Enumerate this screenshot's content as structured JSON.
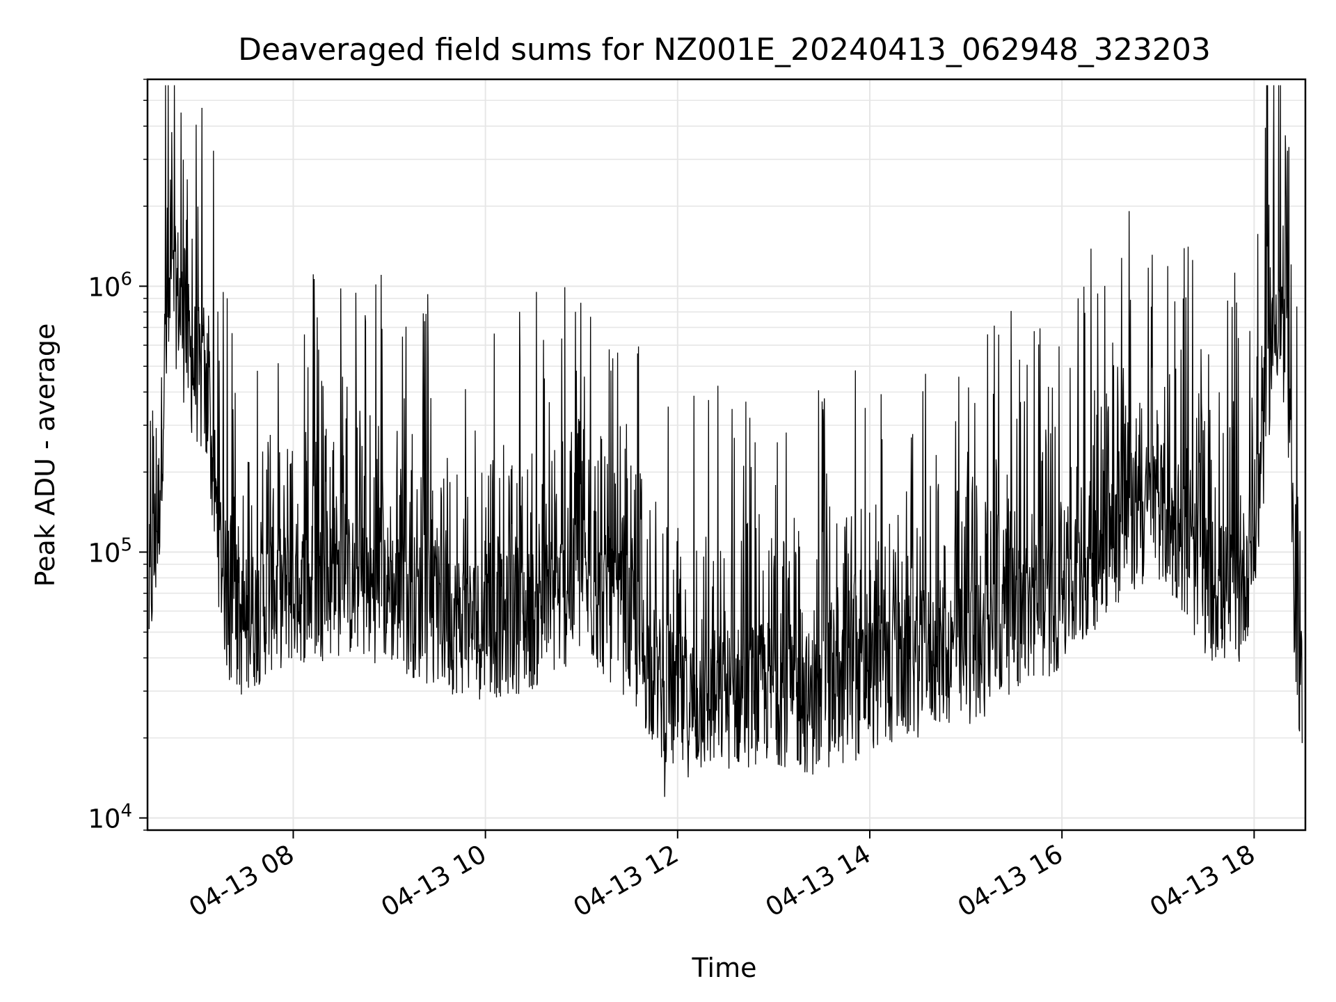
{
  "chart_data": {
    "type": "line",
    "title": "Deaveraged field sums for NZ001E_20240413_062948_323203",
    "xlabel": "Time",
    "ylabel": "Peak ADU - average",
    "yscale": "log",
    "ylim": [
      9000,
      6000000
    ],
    "xlim": [
      "2024-04-13 06:29",
      "2024-04-13 18:32"
    ],
    "grid": true,
    "line_color": "#000000",
    "grid_color": "#e6e6e6",
    "x_tick_labels": [
      {
        "t": "2024-04-13 08:00",
        "label": "04-13 08"
      },
      {
        "t": "2024-04-13 10:00",
        "label": "04-13 10"
      },
      {
        "t": "2024-04-13 12:00",
        "label": "04-13 12"
      },
      {
        "t": "2024-04-13 14:00",
        "label": "04-13 14"
      },
      {
        "t": "2024-04-13 16:00",
        "label": "04-13 16"
      },
      {
        "t": "2024-04-13 18:00",
        "label": "04-13 18"
      }
    ],
    "y_tick_labels": [
      {
        "value": 10000,
        "base": "10",
        "exp": "4"
      },
      {
        "value": 100000,
        "base": "10",
        "exp": "5"
      },
      {
        "value": 1000000,
        "base": "10",
        "exp": "6"
      }
    ],
    "series": [
      {
        "x": [
          "2024-04-13 06:30",
          "2024-04-13 06:36",
          "2024-04-13 06:40",
          "2024-04-13 06:44",
          "2024-04-13 06:48",
          "2024-04-13 06:52",
          "2024-04-13 06:56",
          "2024-04-13 07:00",
          "2024-04-13 07:04",
          "2024-04-13 07:08",
          "2024-04-13 07:12",
          "2024-04-13 07:16",
          "2024-04-13 07:20",
          "2024-04-13 07:30",
          "2024-04-13 07:45",
          "2024-04-13 08:00",
          "2024-04-13 08:30",
          "2024-04-13 09:00",
          "2024-04-13 09:30",
          "2024-04-13 10:00",
          "2024-04-13 10:30",
          "2024-04-13 11:00",
          "2024-04-13 11:30",
          "2024-04-13 11:50",
          "2024-04-13 12:00",
          "2024-04-13 12:30",
          "2024-04-13 13:00",
          "2024-04-13 13:30",
          "2024-04-13 14:00",
          "2024-04-13 14:30",
          "2024-04-13 14:45",
          "2024-04-13 15:00",
          "2024-04-13 15:30",
          "2024-04-13 16:00",
          "2024-04-13 16:30",
          "2024-04-13 17:00",
          "2024-04-13 17:30",
          "2024-04-13 17:50",
          "2024-04-13 18:00",
          "2024-04-13 18:05",
          "2024-04-13 18:10",
          "2024-04-13 18:15",
          "2024-04-13 18:20",
          "2024-04-13 18:25",
          "2024-04-13 18:30"
        ],
        "base": [
          70000,
          150000,
          600000,
          900000,
          1000000,
          700000,
          550000,
          500000,
          420000,
          300000,
          150000,
          90000,
          60000,
          55000,
          70000,
          75000,
          80000,
          75000,
          60000,
          55000,
          60000,
          80000,
          55000,
          32000,
          28000,
          30000,
          32000,
          28000,
          35000,
          40000,
          45000,
          42000,
          60000,
          70000,
          120000,
          160000,
          80000,
          70000,
          120000,
          250000,
          600000,
          900000,
          500000,
          80000,
          28000
        ]
      }
    ],
    "notable_values": {
      "global_max": 4500000,
      "global_max_time": "2024-04-13 06:50",
      "global_min": 12000,
      "global_min_time": "2024-04-13 11:52",
      "end_spike_max": 2500000,
      "end_spike_time": "2024-04-13 18:12"
    }
  }
}
